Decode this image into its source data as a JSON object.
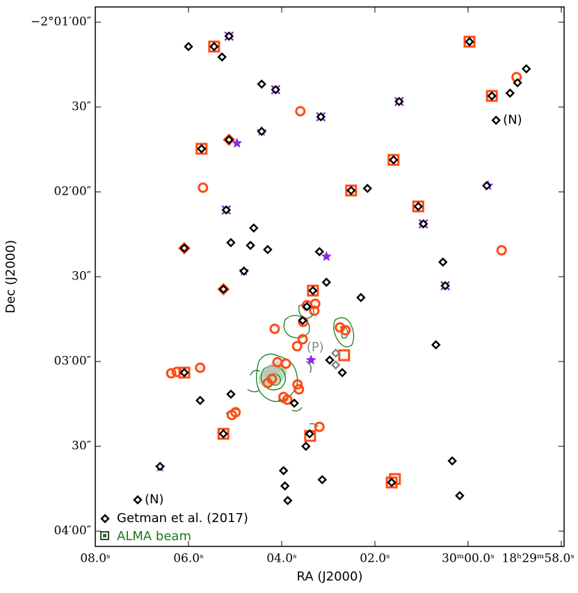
{
  "chart_data": {
    "type": "scatter",
    "xlabel": "RA (J2000)",
    "ylabel": "Dec (J2000)",
    "xlim": [
      68.0,
      57.94
    ],
    "ylim": [
      245.4,
      54.6
    ],
    "xticks": [
      {
        "value": 68,
        "label": "08.0ˢ"
      },
      {
        "value": 66,
        "label": "06.0ˢ"
      },
      {
        "value": 64,
        "label": "04.0ˢ"
      },
      {
        "value": 62,
        "label": "02.0ˢ"
      },
      {
        "value": 60,
        "label": "30ᵐ00.0ˢ"
      },
      {
        "value": 58,
        "label": "18ʰ29ᵐ58.0ˢ"
      }
    ],
    "yticks": [
      {
        "value": 60,
        "label": "−2°01′00″"
      },
      {
        "value": 90,
        "label": "30″"
      },
      {
        "value": 120,
        "label": "02′00″"
      },
      {
        "value": 150,
        "label": "30″"
      },
      {
        "value": 180,
        "label": "03′00″"
      },
      {
        "value": 210,
        "label": "30″"
      },
      {
        "value": 240,
        "label": "04′00″"
      }
    ],
    "beam_label": "ALMA beam",
    "legend": "lower left",
    "annotations": [
      {
        "text": "(N)",
        "x": 59.4,
        "y": 94.67
      },
      {
        "text": "(N)",
        "x": 67.09,
        "y": 228.93
      },
      {
        "text": "(P)",
        "x": 62.84,
        "y": 177.05
      }
    ],
    "series": [
      {
        "name": "Getman et al. (2017)",
        "color": "#000000",
        "marker": "diamond",
        "x": [
          66.0,
          65.45,
          65.13,
          65.28,
          64.43,
          64.13,
          63.16,
          61.48,
          64.43,
          65.13,
          65.72,
          61.6,
          62.51,
          62.16,
          59.6,
          58.75,
          58.94,
          59.1,
          59.49,
          59.97,
          59.4,
          61.07,
          60.96,
          65.19,
          64.6,
          65.09,
          64.67,
          64.3,
          66.09,
          64.81,
          63.19,
          60.54,
          63.04,
          65.25,
          63.33,
          60.49,
          62.3,
          63.46,
          63.55,
          60.69,
          62.97,
          62.7,
          66.09,
          65.75,
          65.09,
          63.73,
          65.25,
          63.4,
          63.48,
          66.61,
          63.96,
          63.93,
          63.87,
          63.13,
          61.64,
          60.34,
          60.18,
          67.09
        ],
        "values": [
          68.61,
          68.61,
          64.92,
          72.3,
          81.89,
          83.85,
          93.44,
          88.03,
          98.61,
          101.56,
          104.75,
          108.69,
          119.51,
          118.77,
          117.79,
          76.48,
          81.39,
          85.08,
          86.07,
          66.89,
          94.67,
          125.16,
          131.31,
          126.39,
          132.79,
          137.95,
          138.93,
          140.41,
          139.92,
          148.03,
          141.15,
          144.84,
          151.97,
          154.43,
          154.92,
          153.2,
          157.38,
          160.57,
          165.49,
          174.1,
          179.51,
          183.93,
          183.93,
          193.77,
          191.56,
          194.75,
          205.57,
          205.57,
          210.0,
          217.13,
          218.61,
          224.02,
          229.18,
          221.8,
          222.79,
          215.16,
          227.45,
          228.93
        ]
      },
      {
        "color": "#888888",
        "marker": "diamond",
        "x": [
          62.84,
          62.84
        ],
        "values": [
          177.05,
          181.23
        ]
      },
      {
        "color": "#ff4a12",
        "marker": "square",
        "x": [
          65.45,
          59.97,
          59.49,
          65.72,
          61.6,
          62.51,
          61.07,
          66.09,
          65.25,
          63.33,
          62.66,
          63.39,
          61.64,
          61.57
        ],
        "values": [
          68.61,
          66.89,
          86.07,
          104.75,
          108.69,
          119.51,
          125.16,
          183.93,
          205.57,
          154.92,
          177.78,
          206.31,
          222.79,
          221.56
        ]
      },
      {
        "color": "#ff4a12",
        "marker": "circle",
        "x": [
          58.96,
          63.6,
          65.69,
          59.28,
          66.37,
          66.25,
          65.75,
          64.15,
          63.67,
          63.55,
          63.46,
          63.28,
          63.3,
          62.75,
          62.63,
          64.09,
          63.91,
          64.3,
          64.21,
          63.66,
          63.63,
          63.96,
          63.88,
          65.07,
          64.99,
          63.19,
          63.54
        ],
        "values": [
          79.43,
          91.48,
          118.52,
          140.66,
          184.17,
          183.69,
          182.21,
          168.44,
          174.59,
          172.13,
          160.08,
          159.59,
          162.05,
          167.95,
          168.93,
          180.25,
          180.74,
          187.62,
          186.15,
          188.11,
          189.84,
          192.54,
          193.52,
          198.93,
          197.95,
          203.11,
          165.98
        ]
      },
      {
        "color": "#ff4a12",
        "marker": "filled-diamond",
        "x": [
          65.13,
          66.09,
          65.25
        ],
        "values": [
          101.56,
          139.92,
          154.43
        ]
      },
      {
        "color": "#8a2be2",
        "marker": "star",
        "x": [
          64.96,
          64.43,
          63.04,
          64.81,
          59.57,
          63.37,
          66.61,
          63.45
        ],
        "values": [
          102.79,
          98.61,
          142.87,
          148.03,
          117.79,
          179.51,
          217.38,
          160.57
        ]
      },
      {
        "color": "#8a2be2",
        "marker": "cross",
        "x": [
          65.13,
          64.13,
          63.16,
          61.48,
          65.19,
          60.96,
          60.49
        ],
        "values": [
          64.92,
          83.85,
          93.44,
          88.03,
          126.39,
          131.31,
          153.2
        ]
      }
    ]
  }
}
